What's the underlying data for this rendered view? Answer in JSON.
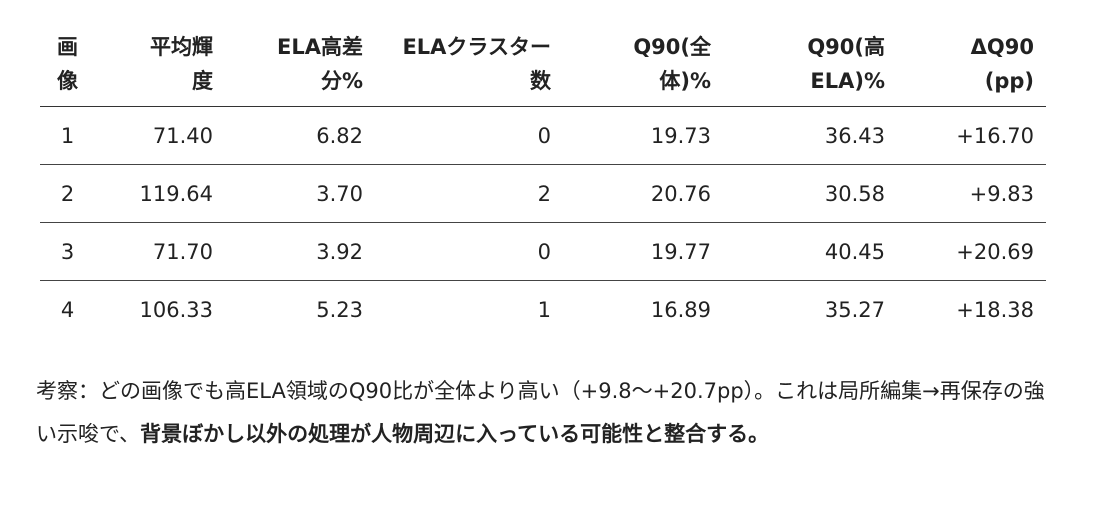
{
  "table": {
    "header": [
      "画像",
      "平均輝度",
      "ELA高差分%",
      "ELAクラスター数",
      "Q90(全体)%",
      "Q90(高ELA)%",
      "ΔQ90(pp)"
    ],
    "rows": [
      [
        "1",
        "71.40",
        "6.82",
        "0",
        "19.73",
        "36.43",
        "+16.70"
      ],
      [
        "2",
        "119.64",
        "3.70",
        "2",
        "20.76",
        "30.58",
        "+9.83"
      ],
      [
        "3",
        "71.70",
        "3.92",
        "0",
        "19.77",
        "40.45",
        "+20.69"
      ],
      [
        "4",
        "106.33",
        "5.23",
        "1",
        "16.89",
        "35.27",
        "+18.38"
      ]
    ]
  },
  "paragraph": {
    "text_before": "考察：どの画像でも高ELA領域のQ90比が全体より高い（+9.8〜+20.7pp）。これは局所編集→再保存の強い示唆で、",
    "bold": "背景ぼかし以外の処理が人物周辺に入っている可能性と整合する。"
  }
}
